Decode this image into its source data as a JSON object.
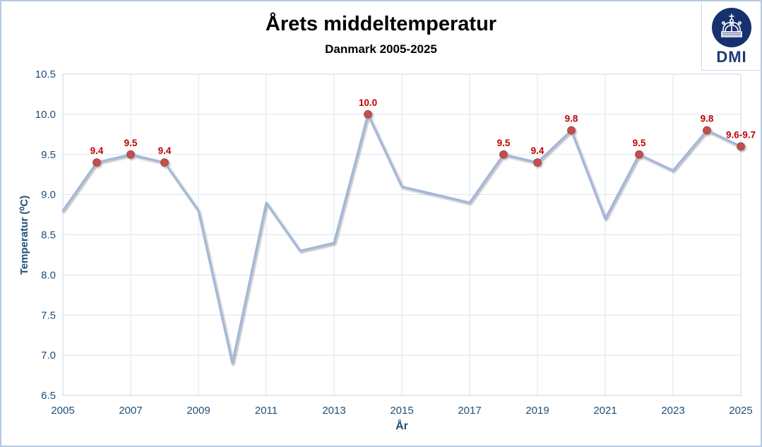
{
  "header": {
    "title": "Årets middeltemperatur",
    "subtitle": "Danmark 2005-2025"
  },
  "logo": {
    "text": "DMI",
    "crown_icon": "crown-icon",
    "circle_color": "#16316e",
    "text_color": "#1b3a75"
  },
  "chart_data": {
    "type": "line",
    "title": "Årets middeltemperatur",
    "subtitle": "Danmark 2005-2025",
    "xlabel": "År",
    "ylabel": "Temperatur (⁰C)",
    "ylim": [
      6.5,
      10.5
    ],
    "ytick_labels": [
      "10.5",
      "10.0",
      "9.5",
      "9.0",
      "8.5",
      "8.0",
      "7.5",
      "7.0",
      "6.5"
    ],
    "xtick_labels": [
      "2005",
      "2007",
      "2009",
      "2011",
      "2013",
      "2015",
      "2017",
      "2019",
      "2021",
      "2023",
      "2025"
    ],
    "grid": true,
    "legend": "none",
    "points": [
      {
        "year": 2005,
        "value": 8.8
      },
      {
        "year": 2006,
        "value": 9.4,
        "label": "9.4"
      },
      {
        "year": 2007,
        "value": 9.5,
        "label": "9.5"
      },
      {
        "year": 2008,
        "value": 9.4,
        "label": "9.4"
      },
      {
        "year": 2009,
        "value": 8.8
      },
      {
        "year": 2010,
        "value": 6.9
      },
      {
        "year": 2011,
        "value": 8.9
      },
      {
        "year": 2012,
        "value": 8.3
      },
      {
        "year": 2013,
        "value": 8.4
      },
      {
        "year": 2014,
        "value": 10.0,
        "label": "10.0"
      },
      {
        "year": 2015,
        "value": 9.1
      },
      {
        "year": 2016,
        "value": 9.0
      },
      {
        "year": 2017,
        "value": 8.9
      },
      {
        "year": 2018,
        "value": 9.5,
        "label": "9.5"
      },
      {
        "year": 2019,
        "value": 9.4,
        "label": "9.4"
      },
      {
        "year": 2020,
        "value": 9.8,
        "label": "9.8"
      },
      {
        "year": 2021,
        "value": 8.7
      },
      {
        "year": 2022,
        "value": 9.5,
        "label": "9.5"
      },
      {
        "year": 2023,
        "value": 9.3
      },
      {
        "year": 2024,
        "value": 9.8,
        "label": "9.8"
      },
      {
        "year": 2025,
        "value": 9.6,
        "label": "9.6-9.7"
      }
    ],
    "colors": {
      "line": "#9fb7da",
      "marker": "#c0504d",
      "marker_edge": "#a8423f",
      "data_label": "#c00000",
      "axis_text": "#1f4e79",
      "gridline": "#d9e5f2",
      "plot_border": "#c3d6ea",
      "frame_border": "#b7c9e2"
    }
  }
}
